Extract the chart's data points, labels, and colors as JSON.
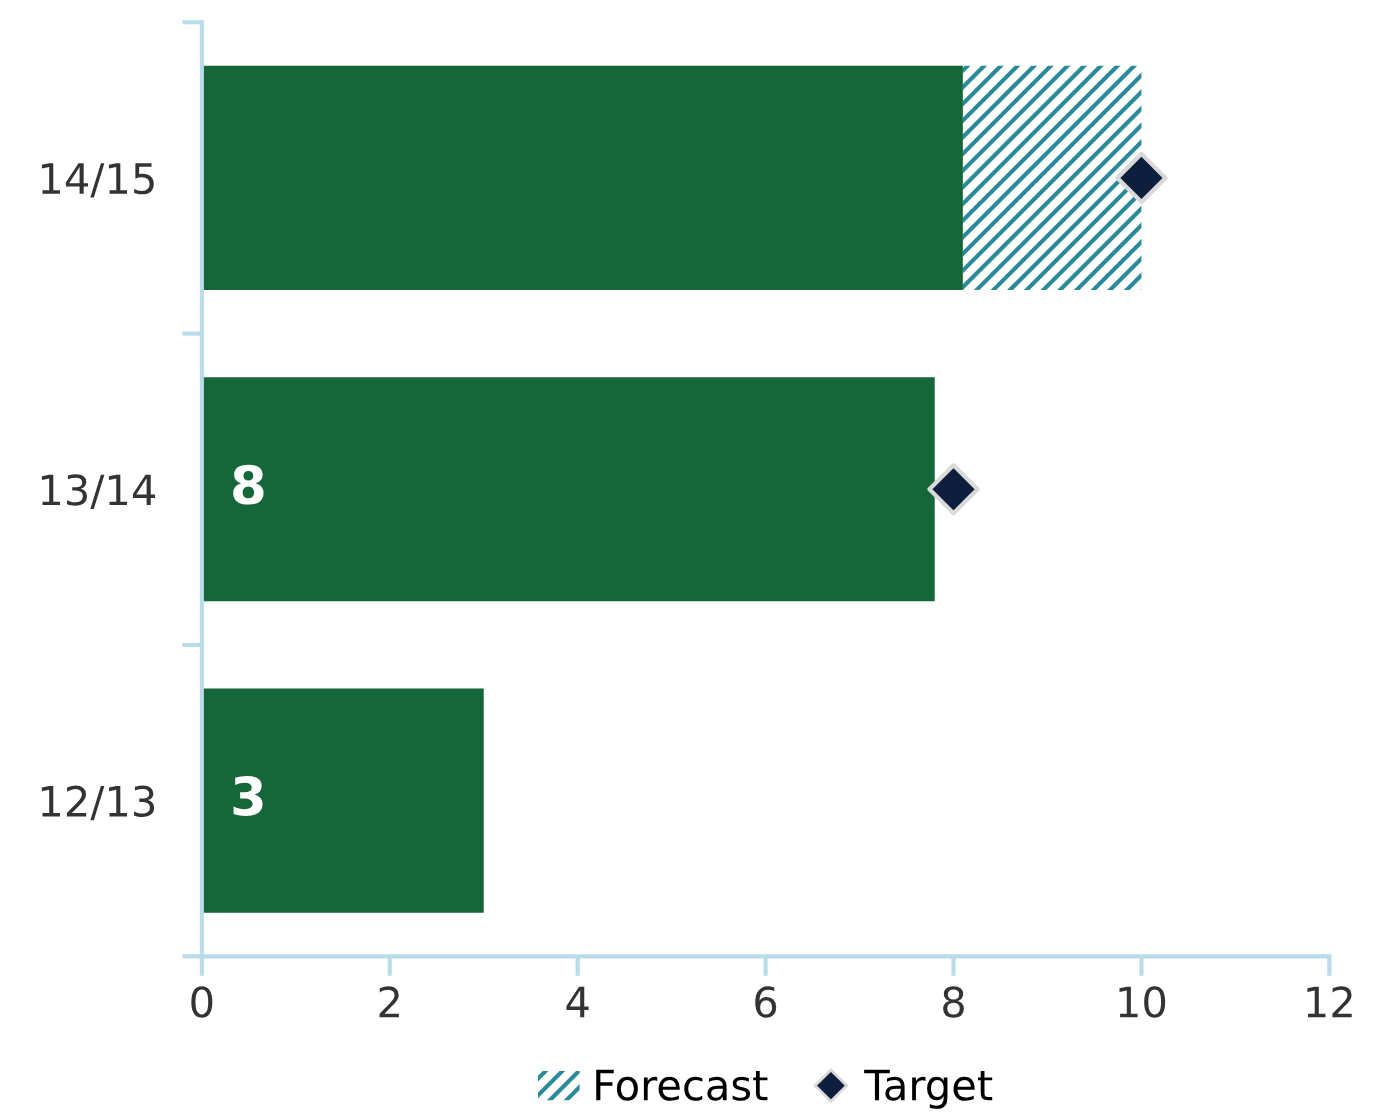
{
  "chart_data": {
    "type": "bar",
    "orientation": "horizontal",
    "stacked": true,
    "categories": [
      "14/15",
      "13/14",
      "12/13"
    ],
    "series": [
      {
        "color": "#15673a",
        "values": [
          8.1,
          7.8,
          3.0
        ],
        "value_labels": [
          null,
          "8",
          "3"
        ]
      },
      {
        "name": "Forecast",
        "color": "#2a8a99",
        "values": [
          1.9,
          null,
          null
        ]
      },
      {
        "type": "scatter",
        "name": "Target",
        "color": "#0e1f3d",
        "marker": "diamond",
        "values": [
          10,
          8,
          null
        ]
      }
    ],
    "xlim": [
      0,
      12
    ],
    "xticks": [
      0,
      2,
      4,
      6,
      8,
      10,
      12
    ],
    "grid": false,
    "legend": "bottom"
  }
}
